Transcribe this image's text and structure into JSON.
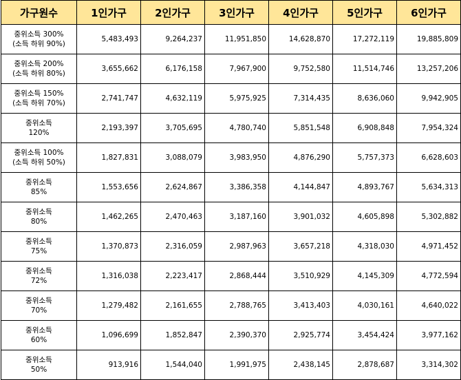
{
  "header": [
    "가구원수",
    "1인가구",
    "2인가구",
    "3인가구",
    "4인가구",
    "5인가구",
    "6인가구"
  ],
  "rows": [
    {
      "label": [
        "중위소득 300%",
        "(소득 하위 90%)"
      ],
      "values": [
        "5,483,493",
        "9,264,237",
        "11,951,850",
        "14,628,870",
        "17,272,119",
        "19,885,809"
      ]
    },
    {
      "label": [
        "중위소득 200%",
        "(소득 하위 80%)"
      ],
      "values": [
        "3,655,662",
        "6,176,158",
        "7,967,900",
        "9,752,580",
        "11,514,746",
        "13,257,206"
      ]
    },
    {
      "label": [
        "중위소득 150%",
        "(소득 하위 70%)"
      ],
      "values": [
        "2,741,747",
        "4,632,119",
        "5,975,925",
        "7,314,435",
        "8,636,060",
        "9,942,905"
      ]
    },
    {
      "label": [
        "중위소득",
        "120%"
      ],
      "values": [
        "2,193,397",
        "3,705,695",
        "4,780,740",
        "5,851,548",
        "6,908,848",
        "7,954,324"
      ]
    },
    {
      "label": [
        "중위소득 100%",
        "(소득 하위 50%)"
      ],
      "values": [
        "1,827,831",
        "3,088,079",
        "3,983,950",
        "4,876,290",
        "5,757,373",
        "6,628,603"
      ]
    },
    {
      "label": [
        "중위소득",
        "85%"
      ],
      "values": [
        "1,553,656",
        "2,624,867",
        "3,386,358",
        "4,144,847",
        "4,893,767",
        "5,634,313"
      ]
    },
    {
      "label": [
        "중위소득",
        "80%"
      ],
      "values": [
        "1,462,265",
        "2,470,463",
        "3,187,160",
        "3,901,032",
        "4,605,898",
        "5,302,882"
      ]
    },
    {
      "label": [
        "중위소득",
        "75%"
      ],
      "values": [
        "1,370,873",
        "2,316,059",
        "2,987,963",
        "3,657,218",
        "4,318,030",
        "4,971,452"
      ]
    },
    {
      "label": [
        "중위소득",
        "72%"
      ],
      "values": [
        "1,316,038",
        "2,223,417",
        "2,868,444",
        "3,510,929",
        "4,145,309",
        "4,772,594"
      ]
    },
    {
      "label": [
        "중위소득",
        "70%"
      ],
      "values": [
        "1,279,482",
        "2,161,655",
        "2,788,765",
        "3,413,403",
        "4,030,161",
        "4,640,022"
      ]
    },
    {
      "label": [
        "중위소득",
        "60%"
      ],
      "values": [
        "1,096,699",
        "1,852,847",
        "2,390,370",
        "2,925,774",
        "3,454,424",
        "3,977,162"
      ]
    },
    {
      "label": [
        "중위소득",
        "50%"
      ],
      "values": [
        "913,916",
        "1,544,040",
        "1,991,975",
        "2,438,145",
        "2,878,687",
        "3,314,302"
      ]
    }
  ]
}
